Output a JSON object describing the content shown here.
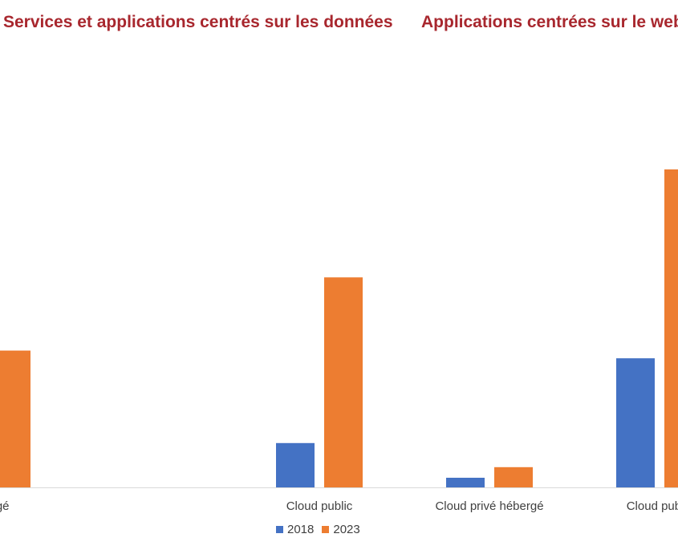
{
  "chart_data": {
    "type": "bar",
    "group_titles": [
      "Services et applications centrés sur les données",
      "Applications centrées sur le web"
    ],
    "categories": [
      "hébergé",
      "Cloud public",
      "Cloud privé hébergé",
      "Cloud public"
    ],
    "series": [
      {
        "name": "2018",
        "color": "#4472c4",
        "values": [
          0,
          4.6,
          1.0,
          13.4
        ]
      },
      {
        "name": "2023",
        "color": "#ed7d31",
        "values": [
          14.2,
          21.8,
          2.1,
          33.0
        ]
      }
    ],
    "ylim": [
      0,
      40
    ],
    "grid": false,
    "legend": "bottom"
  }
}
